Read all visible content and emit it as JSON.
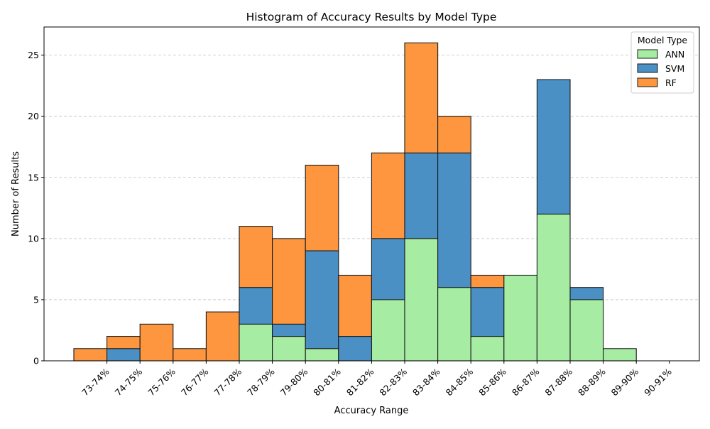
{
  "chart_data": {
    "type": "bar",
    "stacked": true,
    "title": "Histogram of Accuracy Results by Model Type",
    "xlabel": "Accuracy Range",
    "ylabel": "Number of Results",
    "ylim": [
      0,
      27.3
    ],
    "yticks": [
      0,
      5,
      10,
      15,
      20,
      25
    ],
    "grid": "y-dashed",
    "legend": {
      "title": "Model Type",
      "placement": "top-right"
    },
    "categories": [
      "73-74%",
      "74-75%",
      "75-76%",
      "76-77%",
      "77-78%",
      "78-79%",
      "79-80%",
      "80-81%",
      "81-82%",
      "82-83%",
      "83-84%",
      "84-85%",
      "85-86%",
      "86-87%",
      "87-88%",
      "88-89%",
      "89-90%",
      "90-91%"
    ],
    "series": [
      {
        "name": "ANN",
        "color": "#a6eda3",
        "values": [
          0,
          0,
          0,
          0,
          0,
          3,
          2,
          1,
          0,
          5,
          10,
          6,
          2,
          7,
          12,
          5,
          1,
          0
        ]
      },
      {
        "name": "SVM",
        "color": "#4a90c4",
        "values": [
          0,
          1,
          0,
          0,
          0,
          3,
          1,
          8,
          2,
          5,
          7,
          11,
          4,
          0,
          11,
          1,
          0,
          0
        ]
      },
      {
        "name": "RF",
        "color": "#fd963f",
        "values": [
          1,
          1,
          3,
          1,
          4,
          5,
          7,
          7,
          5,
          7,
          9,
          3,
          1,
          0,
          0,
          0,
          0,
          0
        ]
      }
    ]
  }
}
